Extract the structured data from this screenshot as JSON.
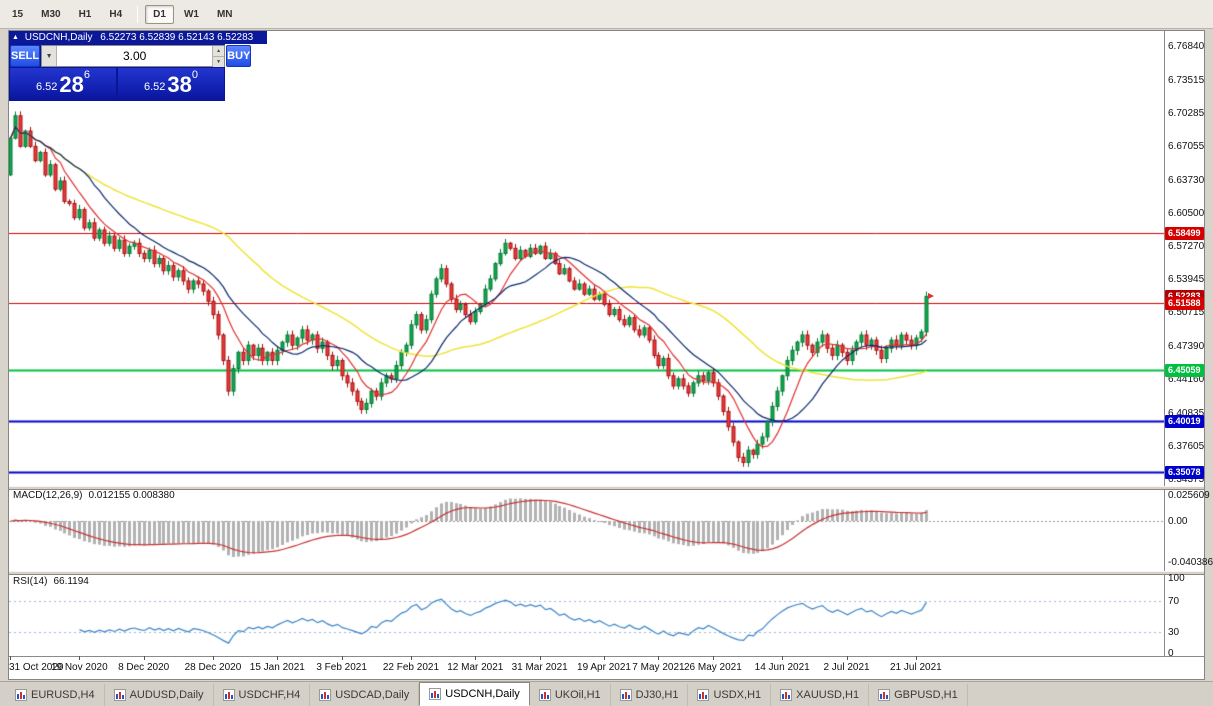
{
  "toolbar": {
    "periods": [
      {
        "label": "15"
      },
      {
        "label": "M30"
      },
      {
        "label": "H1"
      },
      {
        "label": "H4"
      },
      {
        "label": "D1",
        "active": true,
        "separator_before": true
      },
      {
        "label": "W1"
      },
      {
        "label": "MN"
      }
    ]
  },
  "icons": {
    "collapse": "▲",
    "dropdown": "▼",
    "spin_up": "▲",
    "spin_down": "▼"
  },
  "chart_header": {
    "title": "USDCNH,Daily",
    "ohlc": "6.52273 6.52839 6.52143 6.52283"
  },
  "trade_panel": {
    "sell_label": "SELL",
    "buy_label": "BUY",
    "volume": "3.00",
    "bid_small": "6.52",
    "bid_big": "28",
    "bid_sup": "6",
    "ask_small": "6.52",
    "ask_big": "38",
    "ask_sup": "0"
  },
  "tabs": [
    {
      "label": "EURUSD,H4"
    },
    {
      "label": "AUDUSD,Daily"
    },
    {
      "label": "USDCHF,H4"
    },
    {
      "label": "USDCAD,Daily"
    },
    {
      "label": "USDCNH,Daily",
      "active": true
    },
    {
      "label": "UKOil,H1"
    },
    {
      "label": "DJ30,H1"
    },
    {
      "label": "USDX,H1"
    },
    {
      "label": "XAUUSD,H1"
    },
    {
      "label": "GBPUSD,H1"
    }
  ],
  "chart_data": {
    "type": "candlestick",
    "symbol": "USDCNH",
    "timeframe": "Daily",
    "current_bar": {
      "open": "6.52273",
      "high": "6.52839",
      "low": "6.52143",
      "close": "6.52283"
    },
    "first_open": 6.642,
    "closes": [
      6.678,
      6.7,
      6.67,
      6.685,
      6.67,
      6.656,
      6.664,
      6.642,
      6.652,
      6.628,
      6.636,
      6.616,
      6.614,
      6.6,
      6.608,
      6.59,
      6.595,
      6.58,
      6.588,
      6.575,
      6.582,
      6.57,
      6.578,
      6.565,
      6.572,
      6.575,
      6.565,
      6.56,
      6.568,
      6.555,
      6.56,
      6.548,
      6.553,
      6.542,
      6.548,
      6.538,
      6.53,
      6.538,
      6.535,
      6.528,
      6.518,
      6.505,
      6.485,
      6.46,
      6.43,
      6.452,
      6.468,
      6.46,
      6.475,
      6.465,
      6.472,
      6.46,
      6.468,
      6.46,
      6.47,
      6.478,
      6.485,
      6.475,
      6.482,
      6.49,
      6.48,
      6.485,
      6.472,
      6.478,
      6.465,
      6.455,
      6.46,
      6.445,
      6.438,
      6.43,
      6.42,
      6.412,
      6.418,
      6.43,
      6.425,
      6.438,
      6.445,
      6.442,
      6.455,
      6.468,
      6.475,
      6.495,
      6.505,
      6.49,
      6.5,
      6.525,
      6.54,
      6.55,
      6.535,
      6.52,
      6.51,
      6.515,
      6.505,
      6.498,
      6.508,
      6.515,
      6.53,
      6.54,
      6.555,
      6.565,
      6.575,
      6.57,
      6.56,
      6.568,
      6.562,
      6.57,
      6.565,
      6.572,
      6.56,
      6.565,
      6.555,
      6.545,
      6.55,
      6.538,
      6.53,
      6.535,
      6.525,
      6.53,
      6.52,
      6.525,
      6.515,
      6.505,
      6.51,
      6.5,
      6.495,
      6.502,
      6.49,
      6.485,
      6.492,
      6.48,
      6.465,
      6.455,
      6.462,
      6.445,
      6.435,
      6.442,
      6.435,
      6.428,
      6.438,
      6.445,
      6.44,
      6.448,
      6.438,
      6.425,
      6.41,
      6.395,
      6.38,
      6.365,
      6.36,
      6.372,
      6.368,
      6.378,
      6.385,
      6.4,
      6.415,
      6.43,
      6.445,
      6.46,
      6.47,
      6.478,
      6.485,
      6.475,
      6.468,
      6.478,
      6.485,
      6.472,
      6.465,
      6.475,
      6.468,
      6.46,
      6.47,
      6.478,
      6.485,
      6.475,
      6.48,
      6.47,
      6.462,
      6.472,
      6.48,
      6.475,
      6.485,
      6.48,
      6.475,
      6.482,
      6.488,
      6.52283
    ],
    "x_labels": [
      {
        "text": "31 Oct 2020",
        "i": 0
      },
      {
        "text": "19 Nov 2020",
        "i": 14
      },
      {
        "text": "8 Dec 2020",
        "i": 27
      },
      {
        "text": "28 Dec 2020",
        "i": 41
      },
      {
        "text": "15 Jan 2021",
        "i": 54
      },
      {
        "text": "3 Feb 2021",
        "i": 67
      },
      {
        "text": "22 Feb 2021",
        "i": 81
      },
      {
        "text": "12 Mar 2021",
        "i": 94
      },
      {
        "text": "31 Mar 2021",
        "i": 107
      },
      {
        "text": "19 Apr 2021",
        "i": 120
      },
      {
        "text": "7 May 2021",
        "i": 131
      },
      {
        "text": "26 May 2021",
        "i": 142
      },
      {
        "text": "14 Jun 2021",
        "i": 156
      },
      {
        "text": "2 Jul 2021",
        "i": 169
      },
      {
        "text": "21 Jul 2021",
        "i": 183
      }
    ],
    "y_ticks": [
      "6.76840",
      "6.73515",
      "6.70285",
      "6.67055",
      "6.63730",
      "6.60500",
      "6.57270",
      "6.53945",
      "6.50715",
      "6.47390",
      "6.44160",
      "6.40835",
      "6.37605",
      "6.34375"
    ],
    "levels": [
      {
        "price": 6.58499,
        "label": "6.58499",
        "color": "#d40000",
        "width": 1
      },
      {
        "price": 6.51588,
        "label": "6.51588",
        "color": "#d40000",
        "width": 1
      },
      {
        "price": 6.45059,
        "label": "6.45059",
        "color": "#00c040",
        "width": 2
      },
      {
        "price": 6.40019,
        "label": "6.40019",
        "color": "#0000cc",
        "width": 2
      },
      {
        "price": 6.35078,
        "label": "6.35078",
        "color": "#0000cc",
        "width": 2
      }
    ],
    "current_price_tag": {
      "label": "6.52283",
      "price": 6.52283,
      "color": "#b40000"
    },
    "moving_averages": [
      {
        "period": 45,
        "color": "#efe33a"
      },
      {
        "period": 8,
        "color": "#e03232"
      },
      {
        "period": 16,
        "color": "#0a2a6e"
      }
    ],
    "candle_colors": {
      "up": "#10a84e",
      "up_border": "#067a34",
      "down": "#ee3b3b",
      "down_border": "#a51212"
    },
    "macd": {
      "name": "MACD(12,26,9)",
      "values": "0.012155 0.008380",
      "fast": 12,
      "slow": 26,
      "signal": 9,
      "histogram_color": "#b2b2b2",
      "signal_color": "#c83232",
      "scale": [
        {
          "label": "0.025609",
          "v": 0.025609
        },
        {
          "label": "0.00",
          "v": 0
        },
        {
          "label": "-0.040386",
          "v": -0.040386
        }
      ]
    },
    "rsi": {
      "name": "RSI(14)",
      "value": "66.1194",
      "period": 14,
      "line_color": "#3d85c8",
      "levels": [
        70,
        30
      ],
      "scale": [
        {
          "label": "100",
          "v": 100
        },
        {
          "label": "70",
          "v": 70
        },
        {
          "label": "30",
          "v": 30
        },
        {
          "label": "0",
          "v": 0
        }
      ]
    }
  }
}
